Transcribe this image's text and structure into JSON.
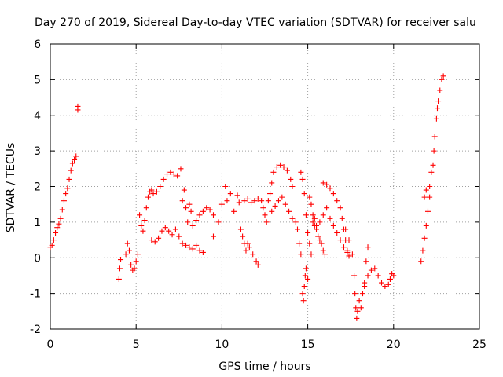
{
  "chart_data": {
    "type": "scatter",
    "title": "Day 270 of 2019, Sidereal Day-to-day VTEC variation (SDTVAR) for receiver salu",
    "xlabel": "GPS time / hours",
    "ylabel": "SDTVAR / TECUs",
    "xlim": [
      0,
      25
    ],
    "ylim": [
      -2,
      6
    ],
    "x_ticks": [
      "0",
      "5",
      "10",
      "15",
      "20",
      "25"
    ],
    "y_ticks": [
      "-2",
      "-1",
      "0",
      "1",
      "2",
      "3",
      "4",
      "5",
      "6"
    ],
    "grid": true,
    "marker": "+",
    "color": "#ff0000",
    "series": [
      {
        "name": "SDTVAR",
        "points": [
          [
            0.0,
            0.3
          ],
          [
            0.1,
            0.35
          ],
          [
            0.2,
            0.5
          ],
          [
            0.3,
            0.7
          ],
          [
            0.4,
            0.85
          ],
          [
            0.5,
            0.95
          ],
          [
            0.6,
            1.1
          ],
          [
            0.7,
            1.35
          ],
          [
            0.8,
            1.6
          ],
          [
            0.9,
            1.8
          ],
          [
            1.0,
            1.95
          ],
          [
            1.1,
            2.2
          ],
          [
            1.2,
            2.45
          ],
          [
            1.3,
            2.65
          ],
          [
            1.4,
            2.75
          ],
          [
            1.5,
            2.85
          ],
          [
            1.6,
            4.15
          ],
          [
            1.6,
            4.25
          ],
          [
            4.0,
            -0.6
          ],
          [
            4.05,
            -0.3
          ],
          [
            4.1,
            -0.05
          ],
          [
            4.4,
            0.1
          ],
          [
            4.5,
            0.4
          ],
          [
            4.6,
            0.2
          ],
          [
            4.7,
            -0.2
          ],
          [
            4.8,
            -0.35
          ],
          [
            4.9,
            -0.3
          ],
          [
            5.0,
            -0.1
          ],
          [
            5.1,
            0.1
          ],
          [
            5.2,
            1.2
          ],
          [
            5.3,
            0.9
          ],
          [
            5.4,
            0.75
          ],
          [
            5.5,
            1.05
          ],
          [
            5.6,
            1.4
          ],
          [
            5.7,
            1.7
          ],
          [
            5.8,
            1.85
          ],
          [
            5.9,
            1.9
          ],
          [
            6.0,
            1.8
          ],
          [
            6.2,
            1.85
          ],
          [
            6.4,
            2.0
          ],
          [
            6.6,
            2.2
          ],
          [
            6.8,
            2.35
          ],
          [
            7.0,
            2.4
          ],
          [
            7.2,
            2.35
          ],
          [
            7.4,
            2.3
          ],
          [
            7.6,
            2.5
          ],
          [
            5.9,
            0.5
          ],
          [
            6.1,
            0.45
          ],
          [
            6.3,
            0.55
          ],
          [
            6.5,
            0.75
          ],
          [
            6.7,
            0.85
          ],
          [
            6.9,
            0.75
          ],
          [
            7.1,
            0.65
          ],
          [
            7.3,
            0.8
          ],
          [
            7.5,
            0.6
          ],
          [
            7.7,
            0.4
          ],
          [
            7.9,
            0.35
          ],
          [
            8.1,
            0.3
          ],
          [
            8.3,
            0.25
          ],
          [
            8.5,
            0.35
          ],
          [
            8.7,
            0.2
          ],
          [
            8.9,
            0.15
          ],
          [
            7.7,
            1.6
          ],
          [
            7.8,
            1.9
          ],
          [
            7.9,
            1.4
          ],
          [
            8.0,
            1.0
          ],
          [
            8.1,
            1.5
          ],
          [
            8.2,
            1.3
          ],
          [
            8.3,
            0.9
          ],
          [
            8.5,
            1.05
          ],
          [
            8.7,
            1.2
          ],
          [
            8.9,
            1.3
          ],
          [
            9.1,
            1.4
          ],
          [
            9.3,
            1.35
          ],
          [
            9.5,
            1.2
          ],
          [
            9.5,
            0.6
          ],
          [
            9.8,
            1.0
          ],
          [
            10.0,
            1.5
          ],
          [
            10.2,
            2.0
          ],
          [
            10.3,
            1.6
          ],
          [
            10.5,
            1.8
          ],
          [
            10.7,
            1.3
          ],
          [
            10.9,
            1.75
          ],
          [
            11.0,
            1.55
          ],
          [
            11.1,
            0.8
          ],
          [
            11.2,
            0.6
          ],
          [
            11.3,
            0.4
          ],
          [
            11.4,
            0.2
          ],
          [
            11.5,
            0.4
          ],
          [
            11.6,
            0.3
          ],
          [
            11.8,
            0.1
          ],
          [
            12.0,
            -0.1
          ],
          [
            12.1,
            -0.2
          ],
          [
            11.3,
            1.6
          ],
          [
            11.5,
            1.65
          ],
          [
            11.7,
            1.55
          ],
          [
            11.9,
            1.6
          ],
          [
            12.1,
            1.65
          ],
          [
            12.3,
            1.6
          ],
          [
            12.4,
            1.4
          ],
          [
            12.5,
            1.2
          ],
          [
            12.6,
            1.0
          ],
          [
            12.7,
            1.6
          ],
          [
            12.8,
            1.8
          ],
          [
            12.9,
            2.1
          ],
          [
            13.0,
            2.4
          ],
          [
            13.2,
            2.55
          ],
          [
            13.4,
            2.6
          ],
          [
            13.6,
            2.55
          ],
          [
            13.8,
            2.45
          ],
          [
            14.0,
            2.2
          ],
          [
            14.1,
            2.0
          ],
          [
            12.9,
            1.3
          ],
          [
            13.1,
            1.45
          ],
          [
            13.3,
            1.6
          ],
          [
            13.5,
            1.7
          ],
          [
            13.7,
            1.5
          ],
          [
            13.9,
            1.3
          ],
          [
            14.1,
            1.1
          ],
          [
            14.3,
            1.0
          ],
          [
            14.4,
            0.8
          ],
          [
            14.5,
            0.4
          ],
          [
            14.6,
            0.1
          ],
          [
            14.6,
            2.4
          ],
          [
            14.7,
            2.2
          ],
          [
            14.8,
            1.8
          ],
          [
            14.9,
            1.2
          ],
          [
            15.0,
            0.7
          ],
          [
            15.1,
            0.4
          ],
          [
            15.2,
            0.1
          ],
          [
            14.7,
            -1.0
          ],
          [
            14.75,
            -1.2
          ],
          [
            14.8,
            -0.8
          ],
          [
            14.85,
            -0.5
          ],
          [
            14.9,
            -0.3
          ],
          [
            15.0,
            -0.6
          ],
          [
            15.1,
            1.7
          ],
          [
            15.2,
            1.5
          ],
          [
            15.3,
            1.2
          ],
          [
            15.4,
            0.9
          ],
          [
            15.5,
            0.8
          ],
          [
            15.6,
            0.6
          ],
          [
            15.7,
            0.5
          ],
          [
            15.8,
            0.4
          ],
          [
            15.9,
            0.2
          ],
          [
            16.0,
            0.1
          ],
          [
            15.3,
            1.0
          ],
          [
            15.4,
            1.1
          ],
          [
            15.5,
            0.9
          ],
          [
            15.7,
            1.0
          ],
          [
            15.9,
            1.2
          ],
          [
            16.1,
            1.4
          ],
          [
            16.3,
            1.1
          ],
          [
            16.5,
            0.9
          ],
          [
            16.7,
            0.7
          ],
          [
            16.9,
            0.5
          ],
          [
            17.1,
            0.3
          ],
          [
            17.3,
            0.15
          ],
          [
            17.4,
            0.05
          ],
          [
            15.9,
            2.1
          ],
          [
            16.1,
            2.05
          ],
          [
            16.3,
            1.95
          ],
          [
            16.5,
            1.8
          ],
          [
            16.7,
            1.6
          ],
          [
            16.9,
            1.4
          ],
          [
            17.0,
            1.1
          ],
          [
            17.1,
            0.8
          ],
          [
            17.2,
            0.5
          ],
          [
            17.3,
            0.2
          ],
          [
            17.2,
            0.8
          ],
          [
            17.4,
            0.5
          ],
          [
            17.6,
            0.1
          ],
          [
            17.7,
            -0.5
          ],
          [
            17.75,
            -1.0
          ],
          [
            17.8,
            -1.4
          ],
          [
            17.85,
            -1.7
          ],
          [
            17.9,
            -1.5
          ],
          [
            18.0,
            -1.2
          ],
          [
            18.1,
            -1.4
          ],
          [
            18.2,
            -1.0
          ],
          [
            18.3,
            -0.8
          ],
          [
            18.4,
            -0.1
          ],
          [
            18.5,
            0.3
          ],
          [
            18.3,
            -0.7
          ],
          [
            18.5,
            -0.5
          ],
          [
            18.7,
            -0.35
          ],
          [
            18.9,
            -0.3
          ],
          [
            19.1,
            -0.5
          ],
          [
            19.3,
            -0.7
          ],
          [
            19.5,
            -0.8
          ],
          [
            19.7,
            -0.75
          ],
          [
            19.8,
            -0.6
          ],
          [
            19.9,
            -0.45
          ],
          [
            20.0,
            -0.5
          ],
          [
            21.6,
            -0.1
          ],
          [
            21.7,
            0.2
          ],
          [
            21.8,
            0.55
          ],
          [
            21.9,
            0.9
          ],
          [
            22.0,
            1.3
          ],
          [
            22.1,
            1.7
          ],
          [
            21.8,
            1.7
          ],
          [
            21.9,
            1.9
          ],
          [
            22.1,
            2.0
          ],
          [
            22.2,
            2.4
          ],
          [
            22.3,
            2.6
          ],
          [
            22.35,
            3.0
          ],
          [
            22.4,
            3.4
          ],
          [
            22.5,
            3.9
          ],
          [
            22.55,
            4.2
          ],
          [
            22.6,
            4.4
          ],
          [
            22.7,
            4.7
          ],
          [
            22.8,
            5.0
          ],
          [
            22.9,
            5.1
          ]
        ]
      }
    ]
  }
}
